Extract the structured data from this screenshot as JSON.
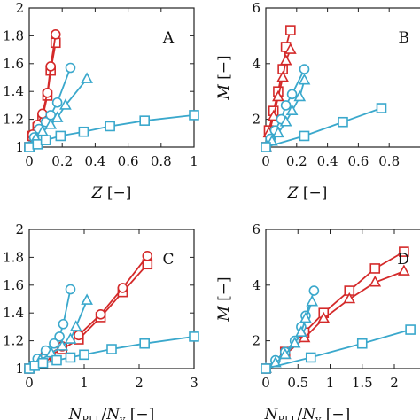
{
  "colors": {
    "red": "#d42a2a",
    "blue": "#3aa8cc",
    "axis": "#222222"
  },
  "chart_data": [
    {
      "type": "line",
      "panel_label": "A",
      "xlim": [
        0,
        1
      ],
      "ylim": [
        1,
        2
      ],
      "xticks": [
        "0",
        "0.2",
        "0.4",
        "0.6",
        "0.8",
        "1"
      ],
      "xtick_values": [
        0,
        0.2,
        0.4,
        0.6,
        0.8,
        1
      ],
      "yticks": [
        "1",
        "1.2",
        "1.4",
        "1.6",
        "1.8",
        "2"
      ],
      "ytick_values": [
        1,
        1.2,
        1.4,
        1.6,
        1.8,
        2
      ],
      "xlabel": "Z [−]",
      "ylabel": "",
      "series": [
        {
          "marker": "square",
          "color": "red",
          "x": [
            0,
            0.02,
            0.05,
            0.08,
            0.11,
            0.13,
            0.16
          ],
          "y": [
            1.0,
            1.08,
            1.14,
            1.21,
            1.37,
            1.55,
            1.75
          ]
        },
        {
          "marker": "circle",
          "color": "red",
          "x": [
            0,
            0.02,
            0.05,
            0.08,
            0.11,
            0.13,
            0.16
          ],
          "y": [
            1.0,
            1.09,
            1.16,
            1.24,
            1.39,
            1.58,
            1.81
          ]
        },
        {
          "marker": "circle",
          "color": "blue",
          "x": [
            0,
            0.03,
            0.06,
            0.1,
            0.13,
            0.17,
            0.25
          ],
          "y": [
            1.0,
            1.07,
            1.13,
            1.18,
            1.23,
            1.32,
            1.57
          ]
        },
        {
          "marker": "triangle",
          "color": "blue",
          "x": [
            0,
            0.04,
            0.08,
            0.13,
            0.17,
            0.22,
            0.35
          ],
          "y": [
            1.0,
            1.06,
            1.11,
            1.16,
            1.21,
            1.3,
            1.49
          ]
        },
        {
          "marker": "square",
          "color": "blue",
          "x": [
            0,
            0.05,
            0.1,
            0.19,
            0.33,
            0.49,
            0.7,
            1.0
          ],
          "y": [
            1.0,
            1.02,
            1.05,
            1.08,
            1.11,
            1.15,
            1.19,
            1.23
          ]
        }
      ]
    },
    {
      "type": "line",
      "panel_label": "B",
      "xlim": [
        0,
        1
      ],
      "ylim": [
        1,
        6
      ],
      "xticks": [
        "0",
        "0.2",
        "0.4",
        "0.6",
        "0.8"
      ],
      "xtick_values": [
        0,
        0.2,
        0.4,
        0.6,
        0.8
      ],
      "yticks": [
        "2",
        "4",
        "6"
      ],
      "ytick_values": [
        2,
        4,
        6
      ],
      "xlabel": "Z [−]",
      "ylabel": "M [−]",
      "series": [
        {
          "marker": "square",
          "color": "red",
          "x": [
            0,
            0.02,
            0.05,
            0.08,
            0.11,
            0.13,
            0.16
          ],
          "y": [
            1.0,
            1.6,
            2.3,
            3.0,
            3.8,
            4.6,
            5.2
          ]
        },
        {
          "marker": "triangle",
          "color": "red",
          "x": [
            0,
            0.02,
            0.05,
            0.08,
            0.11,
            0.13,
            0.16
          ],
          "y": [
            1.0,
            1.5,
            2.1,
            2.8,
            3.5,
            4.1,
            4.5
          ]
        },
        {
          "marker": "circle",
          "color": "blue",
          "x": [
            0,
            0.03,
            0.06,
            0.1,
            0.13,
            0.17,
            0.25
          ],
          "y": [
            1.0,
            1.3,
            1.6,
            2.0,
            2.5,
            2.9,
            3.8
          ]
        },
        {
          "marker": "triangle",
          "color": "blue",
          "x": [
            0,
            0.04,
            0.08,
            0.13,
            0.17,
            0.22,
            0.25
          ],
          "y": [
            1.0,
            1.2,
            1.5,
            1.9,
            2.3,
            2.8,
            3.4
          ]
        },
        {
          "marker": "square",
          "color": "blue",
          "x": [
            0,
            0.25,
            0.5,
            0.75
          ],
          "y": [
            1.0,
            1.4,
            1.9,
            2.4
          ]
        }
      ]
    },
    {
      "type": "line",
      "panel_label": "C",
      "xlim": [
        0,
        3
      ],
      "ylim": [
        1,
        2
      ],
      "xticks": [
        "0",
        "1",
        "2",
        "3"
      ],
      "xtick_values": [
        0,
        1,
        2,
        3
      ],
      "yticks": [
        "1",
        "1.2",
        "1.4",
        "1.6",
        "1.8",
        "2"
      ],
      "ytick_values": [
        1,
        1.2,
        1.4,
        1.6,
        1.8,
        2
      ],
      "xlabel": "N_PLL / N_v [−]",
      "ylabel": "",
      "series": [
        {
          "marker": "square",
          "color": "red",
          "x": [
            0,
            0.3,
            0.6,
            0.9,
            1.3,
            1.7,
            2.15
          ],
          "y": [
            1.0,
            1.08,
            1.14,
            1.21,
            1.37,
            1.55,
            1.75
          ]
        },
        {
          "marker": "circle",
          "color": "red",
          "x": [
            0,
            0.3,
            0.6,
            0.9,
            1.3,
            1.7,
            2.15
          ],
          "y": [
            1.0,
            1.09,
            1.16,
            1.24,
            1.39,
            1.58,
            1.81
          ]
        },
        {
          "marker": "circle",
          "color": "blue",
          "x": [
            0,
            0.15,
            0.3,
            0.45,
            0.55,
            0.62,
            0.75
          ],
          "y": [
            1.0,
            1.07,
            1.13,
            1.18,
            1.23,
            1.32,
            1.57
          ]
        },
        {
          "marker": "triangle",
          "color": "blue",
          "x": [
            0,
            0.2,
            0.4,
            0.6,
            0.75,
            0.85,
            1.05
          ],
          "y": [
            1.0,
            1.06,
            1.11,
            1.16,
            1.21,
            1.3,
            1.49
          ]
        },
        {
          "marker": "square",
          "color": "blue",
          "x": [
            0,
            0.1,
            0.25,
            0.5,
            0.75,
            1.0,
            1.5,
            2.1,
            3.0
          ],
          "y": [
            1.0,
            1.02,
            1.04,
            1.06,
            1.08,
            1.1,
            1.14,
            1.18,
            1.23
          ]
        }
      ]
    },
    {
      "type": "line",
      "panel_label": "D",
      "xlim": [
        0,
        2.4
      ],
      "ylim": [
        1,
        6
      ],
      "xticks": [
        "0",
        "0.5",
        "1",
        "1.5",
        "2"
      ],
      "xtick_values": [
        0,
        0.5,
        1,
        1.5,
        2
      ],
      "yticks": [
        "2",
        "4",
        "6"
      ],
      "ytick_values": [
        2,
        4,
        6
      ],
      "xlabel": "N_PLL / N_v [−]",
      "ylabel": "M [−]",
      "series": [
        {
          "marker": "square",
          "color": "red",
          "x": [
            0,
            0.3,
            0.6,
            0.9,
            1.3,
            1.7,
            2.15
          ],
          "y": [
            1.0,
            1.6,
            2.3,
            3.0,
            3.8,
            4.6,
            5.2
          ]
        },
        {
          "marker": "triangle",
          "color": "red",
          "x": [
            0,
            0.3,
            0.6,
            0.9,
            1.3,
            1.7,
            2.15
          ],
          "y": [
            1.0,
            1.5,
            2.1,
            2.8,
            3.5,
            4.1,
            4.5
          ]
        },
        {
          "marker": "circle",
          "color": "blue",
          "x": [
            0,
            0.15,
            0.3,
            0.45,
            0.55,
            0.62,
            0.75
          ],
          "y": [
            1.0,
            1.3,
            1.6,
            2.0,
            2.5,
            2.9,
            3.8
          ]
        },
        {
          "marker": "triangle",
          "color": "blue",
          "x": [
            0,
            0.15,
            0.3,
            0.45,
            0.55,
            0.62,
            0.72
          ],
          "y": [
            1.0,
            1.2,
            1.5,
            1.9,
            2.3,
            2.8,
            3.4
          ]
        },
        {
          "marker": "square",
          "color": "blue",
          "x": [
            0,
            0.7,
            1.5,
            2.25
          ],
          "y": [
            1.0,
            1.4,
            1.9,
            2.4
          ]
        }
      ]
    }
  ]
}
